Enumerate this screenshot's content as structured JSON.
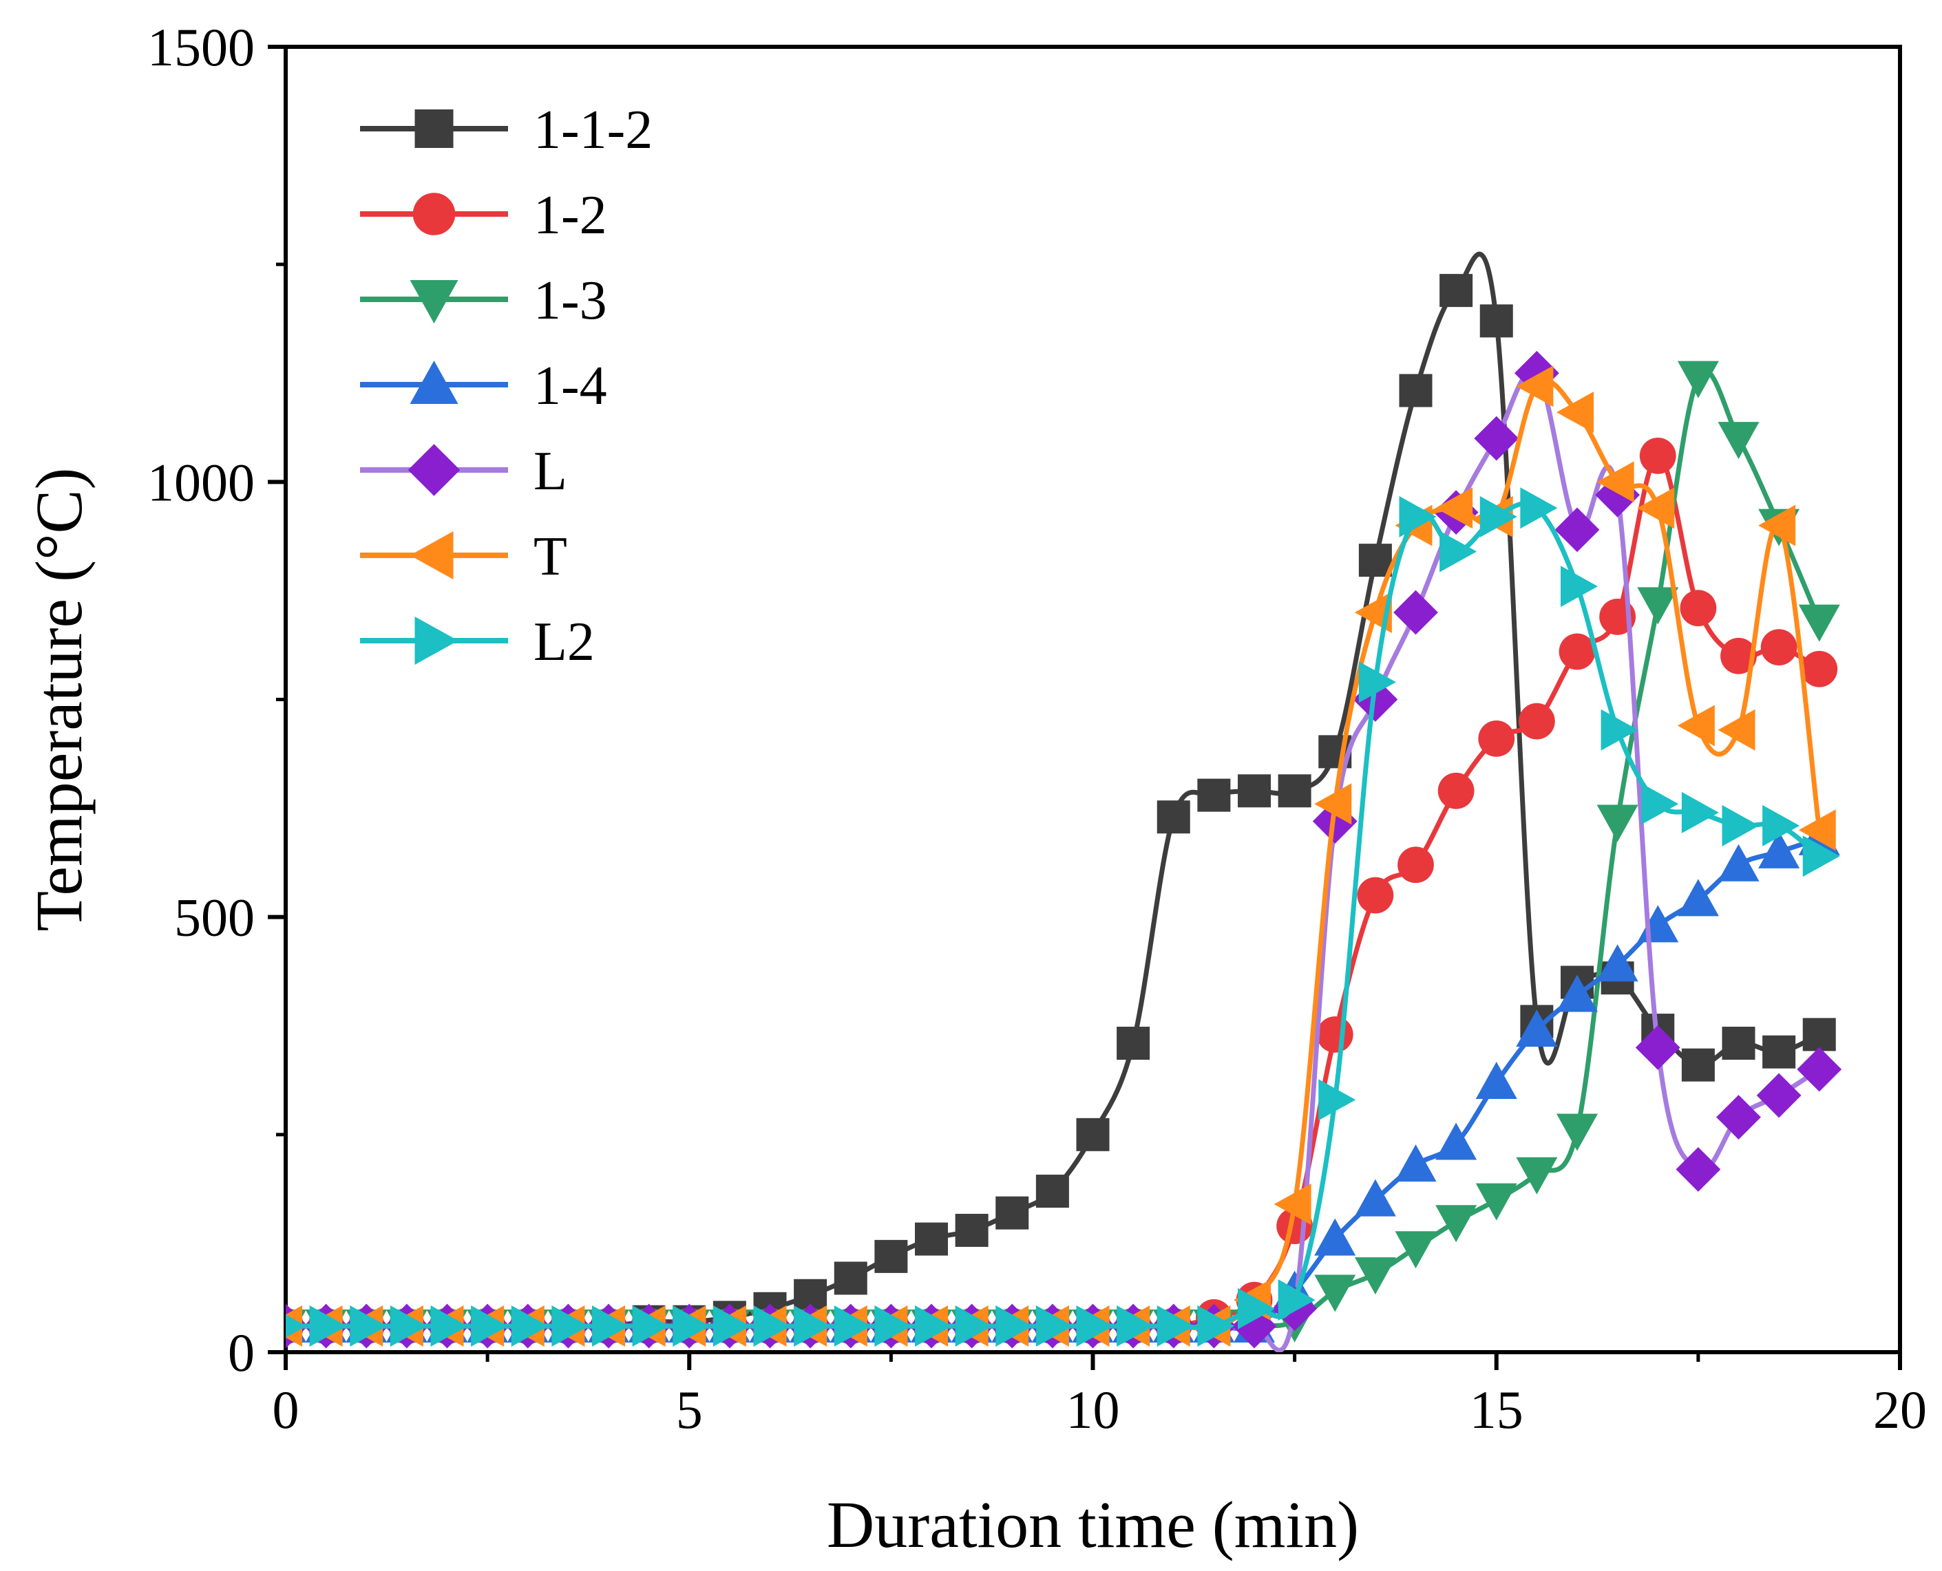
{
  "chart_data": {
    "type": "line",
    "xlabel": "Duration time (min)",
    "ylabel": "Temperature (°C)",
    "xlim": [
      0,
      20
    ],
    "ylim": [
      0,
      1500
    ],
    "x_ticks": [
      0,
      5,
      10,
      15,
      20
    ],
    "y_ticks": [
      0,
      500,
      1000,
      1500
    ],
    "x_tick_labels": [
      "0",
      "5",
      "10",
      "15",
      "20"
    ],
    "y_tick_labels": [
      "0",
      "500",
      "1000",
      "1500"
    ],
    "grid": false,
    "legend_position": "top-left",
    "series": [
      {
        "name": "1-1-2",
        "color": "#3d3d3d",
        "marker": "square",
        "x": [
          0,
          0.5,
          1,
          1.5,
          2,
          2.5,
          3,
          3.5,
          4,
          4.5,
          5,
          5.5,
          6,
          6.5,
          7,
          7.5,
          8,
          8.5,
          9,
          9.5,
          10,
          10.5,
          11,
          11.5,
          12,
          12.5,
          13,
          13.5,
          14,
          14.5,
          15,
          15.5,
          16,
          16.5,
          17,
          17.5,
          18,
          18.5,
          19
        ],
        "y": [
          30,
          30,
          30,
          30,
          30,
          30,
          30,
          30,
          30,
          35,
          35,
          40,
          50,
          65,
          85,
          110,
          130,
          140,
          160,
          185,
          250,
          355,
          615,
          640,
          645,
          645,
          690,
          910,
          1105,
          1220,
          1185,
          380,
          425,
          430,
          370,
          330,
          355,
          345,
          365
        ]
      },
      {
        "name": "1-2",
        "color": "#e8383c",
        "marker": "circle",
        "x": [
          0,
          0.5,
          1,
          1.5,
          2,
          2.5,
          3,
          3.5,
          4,
          4.5,
          5,
          5.5,
          6,
          6.5,
          7,
          7.5,
          8,
          8.5,
          9,
          9.5,
          10,
          10.5,
          11,
          11.5,
          12,
          12.5,
          13,
          13.5,
          14,
          14.5,
          15,
          15.5,
          16,
          16.5,
          17,
          17.5,
          18,
          18.5,
          19
        ],
        "y": [
          30,
          30,
          30,
          30,
          30,
          30,
          30,
          30,
          30,
          30,
          30,
          30,
          30,
          30,
          30,
          30,
          30,
          30,
          30,
          30,
          30,
          30,
          30,
          40,
          60,
          145,
          365,
          525,
          560,
          645,
          705,
          725,
          805,
          845,
          1030,
          855,
          800,
          810,
          785
        ]
      },
      {
        "name": "1-3",
        "color": "#2e9f6a",
        "marker": "triangle-down",
        "x": [
          0,
          0.5,
          1,
          1.5,
          2,
          2.5,
          3,
          3.5,
          4,
          4.5,
          5,
          5.5,
          6,
          6.5,
          7,
          7.5,
          8,
          8.5,
          9,
          9.5,
          10,
          10.5,
          11,
          11.5,
          12,
          12.5,
          13,
          13.5,
          14,
          14.5,
          15,
          15.5,
          16,
          16.5,
          17,
          17.5,
          18,
          18.5,
          19
        ],
        "y": [
          30,
          30,
          30,
          30,
          30,
          30,
          30,
          30,
          30,
          30,
          30,
          30,
          30,
          30,
          30,
          30,
          30,
          30,
          30,
          30,
          30,
          30,
          30,
          30,
          30,
          35,
          70,
          90,
          120,
          150,
          175,
          205,
          255,
          610,
          860,
          1120,
          1050,
          950,
          840
        ]
      },
      {
        "name": "1-4",
        "color": "#2a6fdb",
        "marker": "triangle-up",
        "x": [
          0,
          0.5,
          1,
          1.5,
          2,
          2.5,
          3,
          3.5,
          4,
          4.5,
          5,
          5.5,
          6,
          6.5,
          7,
          7.5,
          8,
          8.5,
          9,
          9.5,
          10,
          10.5,
          11,
          11.5,
          12,
          12.5,
          13,
          13.5,
          14,
          14.5,
          15,
          15.5,
          16,
          16.5,
          17,
          17.5,
          18,
          18.5,
          19
        ],
        "y": [
          30,
          30,
          30,
          30,
          30,
          30,
          30,
          30,
          30,
          30,
          30,
          30,
          30,
          30,
          30,
          30,
          30,
          30,
          30,
          30,
          30,
          30,
          30,
          30,
          30,
          70,
          130,
          175,
          215,
          240,
          310,
          370,
          410,
          445,
          490,
          520,
          560,
          575,
          590
        ]
      },
      {
        "name": "L",
        "color": "#a57be0",
        "marker": "diamond",
        "marker_color": "#8a1fd0",
        "x": [
          0,
          0.5,
          1,
          1.5,
          2,
          2.5,
          3,
          3.5,
          4,
          4.5,
          5,
          5.5,
          6,
          6.5,
          7,
          7.5,
          8,
          8.5,
          9,
          9.5,
          10,
          10.5,
          11,
          11.5,
          12,
          12.5,
          13,
          13.5,
          14,
          14.5,
          15,
          15.5,
          16,
          16.5,
          17,
          17.5,
          18,
          18.5,
          19
        ],
        "y": [
          30,
          30,
          30,
          30,
          30,
          30,
          30,
          30,
          30,
          30,
          30,
          30,
          30,
          30,
          30,
          30,
          30,
          30,
          30,
          30,
          30,
          30,
          30,
          30,
          30,
          50,
          610,
          750,
          850,
          965,
          1050,
          1125,
          945,
          985,
          350,
          210,
          270,
          295,
          325
        ]
      },
      {
        "name": "T",
        "color": "#ff8a1a",
        "marker": "triangle-left",
        "x": [
          0,
          0.5,
          1,
          1.5,
          2,
          2.5,
          3,
          3.5,
          4,
          4.5,
          5,
          5.5,
          6,
          6.5,
          7,
          7.5,
          8,
          8.5,
          9,
          9.5,
          10,
          10.5,
          11,
          11.5,
          12,
          12.5,
          13,
          13.5,
          14,
          14.5,
          15,
          15.5,
          16,
          16.5,
          17,
          17.5,
          18,
          18.5,
          19
        ],
        "y": [
          30,
          30,
          30,
          30,
          30,
          30,
          30,
          30,
          30,
          30,
          30,
          30,
          30,
          30,
          30,
          30,
          30,
          30,
          30,
          30,
          30,
          30,
          30,
          30,
          60,
          170,
          630,
          850,
          950,
          970,
          960,
          1110,
          1080,
          1000,
          970,
          720,
          715,
          950,
          600
        ]
      },
      {
        "name": "L2",
        "color": "#1bbfc4",
        "marker": "triangle-right",
        "x": [
          0,
          0.5,
          1,
          1.5,
          2,
          2.5,
          3,
          3.5,
          4,
          4.5,
          5,
          5.5,
          6,
          6.5,
          7,
          7.5,
          8,
          8.5,
          9,
          9.5,
          10,
          10.5,
          11,
          11.5,
          12,
          12.5,
          13,
          13.5,
          14,
          14.5,
          15,
          15.5,
          16,
          16.5,
          17,
          17.5,
          18,
          18.5,
          19
        ],
        "y": [
          30,
          30,
          30,
          30,
          30,
          30,
          30,
          30,
          30,
          30,
          30,
          30,
          30,
          30,
          30,
          30,
          30,
          30,
          30,
          30,
          30,
          30,
          30,
          30,
          50,
          60,
          290,
          770,
          960,
          920,
          960,
          970,
          880,
          715,
          630,
          620,
          605,
          605,
          570
        ]
      }
    ]
  }
}
